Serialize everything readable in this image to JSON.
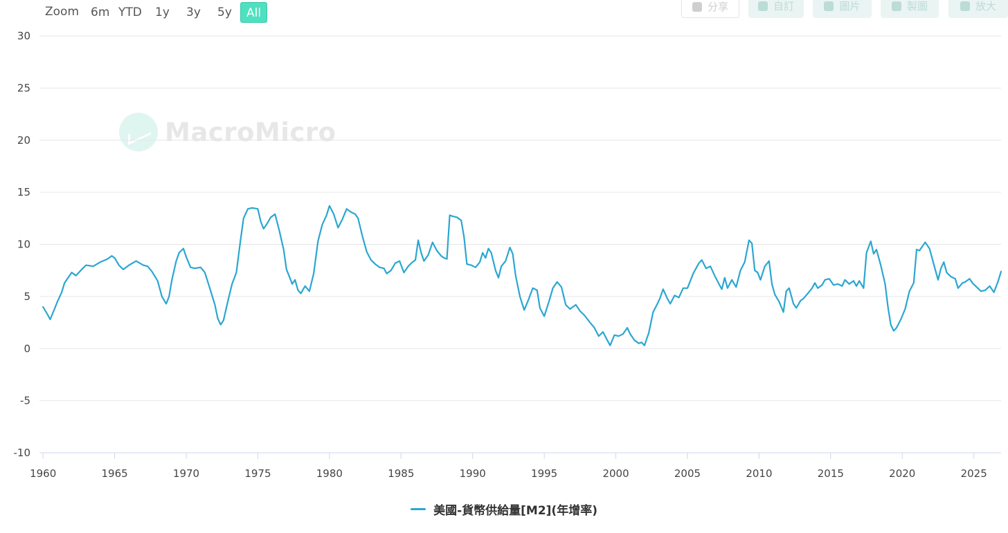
{
  "toolbar": {
    "zoom_label": "Zoom",
    "ranges": [
      "6m",
      "YTD",
      "1y",
      "3y",
      "5y",
      "All"
    ],
    "active_range": "All",
    "tools": [
      "分享",
      "自訂",
      "圖片",
      "製圖",
      "放大"
    ]
  },
  "watermark": {
    "text": "MacroMicro"
  },
  "chart_data": {
    "type": "line",
    "title": "",
    "xlabel": "",
    "ylabel": "",
    "xlim": [
      1959.75,
      2026.9
    ],
    "ylim": [
      -10,
      30
    ],
    "yticks": [
      -10,
      -5,
      0,
      5,
      10,
      15,
      20,
      25,
      30
    ],
    "xticks": [
      1960,
      1965,
      1970,
      1975,
      1980,
      1985,
      1990,
      1995,
      2000,
      2005,
      2010,
      2015,
      2020,
      2025
    ],
    "grid": true,
    "legend_position": "bottom-center",
    "series": [
      {
        "name": "美國-貨幣供給量[M2](年增率)",
        "color": "#2aa6d1",
        "points": [
          [
            1960.0,
            4.0
          ],
          [
            1960.3,
            3.3
          ],
          [
            1960.5,
            2.8
          ],
          [
            1960.8,
            3.8
          ],
          [
            1961.0,
            4.5
          ],
          [
            1961.3,
            5.4
          ],
          [
            1961.5,
            6.3
          ],
          [
            1961.8,
            6.9
          ],
          [
            1962.0,
            7.3
          ],
          [
            1962.3,
            7.0
          ],
          [
            1962.7,
            7.6
          ],
          [
            1963.0,
            8.0
          ],
          [
            1963.5,
            7.9
          ],
          [
            1964.0,
            8.3
          ],
          [
            1964.5,
            8.6
          ],
          [
            1964.8,
            8.9
          ],
          [
            1965.0,
            8.7
          ],
          [
            1965.3,
            8.0
          ],
          [
            1965.6,
            7.6
          ],
          [
            1966.0,
            8.0
          ],
          [
            1966.5,
            8.4
          ],
          [
            1967.0,
            8.0
          ],
          [
            1967.3,
            7.9
          ],
          [
            1967.6,
            7.4
          ],
          [
            1968.0,
            6.5
          ],
          [
            1968.3,
            5.0
          ],
          [
            1968.6,
            4.3
          ],
          [
            1968.8,
            5.0
          ],
          [
            1969.0,
            6.6
          ],
          [
            1969.3,
            8.4
          ],
          [
            1969.5,
            9.2
          ],
          [
            1969.8,
            9.6
          ],
          [
            1970.0,
            8.8
          ],
          [
            1970.3,
            7.8
          ],
          [
            1970.6,
            7.7
          ],
          [
            1971.0,
            7.8
          ],
          [
            1971.3,
            7.3
          ],
          [
            1971.6,
            6.0
          ],
          [
            1972.0,
            4.2
          ],
          [
            1972.2,
            2.9
          ],
          [
            1972.4,
            2.3
          ],
          [
            1972.6,
            2.7
          ],
          [
            1972.9,
            4.5
          ],
          [
            1973.2,
            6.2
          ],
          [
            1973.5,
            7.3
          ],
          [
            1973.8,
            10.5
          ],
          [
            1974.0,
            12.5
          ],
          [
            1974.3,
            13.4
          ],
          [
            1974.6,
            13.5
          ],
          [
            1975.0,
            13.4
          ],
          [
            1975.2,
            12.2
          ],
          [
            1975.4,
            11.5
          ],
          [
            1975.6,
            11.9
          ],
          [
            1975.9,
            12.6
          ],
          [
            1976.2,
            12.9
          ],
          [
            1976.5,
            11.3
          ],
          [
            1976.8,
            9.5
          ],
          [
            1977.0,
            7.6
          ],
          [
            1977.2,
            6.9
          ],
          [
            1977.4,
            6.2
          ],
          [
            1977.6,
            6.6
          ],
          [
            1977.8,
            5.6
          ],
          [
            1978.0,
            5.3
          ],
          [
            1978.3,
            6.0
          ],
          [
            1978.6,
            5.5
          ],
          [
            1978.9,
            7.2
          ],
          [
            1979.2,
            10.3
          ],
          [
            1979.5,
            11.9
          ],
          [
            1979.8,
            12.8
          ],
          [
            1980.0,
            13.7
          ],
          [
            1980.3,
            12.9
          ],
          [
            1980.6,
            11.6
          ],
          [
            1980.9,
            12.4
          ],
          [
            1981.2,
            13.4
          ],
          [
            1981.5,
            13.1
          ],
          [
            1981.8,
            12.9
          ],
          [
            1982.0,
            12.5
          ],
          [
            1982.3,
            10.8
          ],
          [
            1982.6,
            9.3
          ],
          [
            1982.9,
            8.5
          ],
          [
            1983.2,
            8.1
          ],
          [
            1983.5,
            7.8
          ],
          [
            1983.8,
            7.7
          ],
          [
            1984.0,
            7.2
          ],
          [
            1984.3,
            7.5
          ],
          [
            1984.6,
            8.2
          ],
          [
            1984.9,
            8.4
          ],
          [
            1985.2,
            7.3
          ],
          [
            1985.5,
            7.9
          ],
          [
            1985.8,
            8.3
          ],
          [
            1986.0,
            8.5
          ],
          [
            1986.2,
            10.4
          ],
          [
            1986.4,
            9.2
          ],
          [
            1986.6,
            8.4
          ],
          [
            1986.9,
            9.0
          ],
          [
            1987.2,
            10.2
          ],
          [
            1987.5,
            9.4
          ],
          [
            1987.8,
            8.9
          ],
          [
            1988.0,
            8.7
          ],
          [
            1988.2,
            8.6
          ],
          [
            1988.4,
            12.8
          ],
          [
            1988.6,
            12.7
          ],
          [
            1988.9,
            12.6
          ],
          [
            1989.2,
            12.3
          ],
          [
            1989.4,
            10.7
          ],
          [
            1989.6,
            8.1
          ],
          [
            1989.9,
            8.0
          ],
          [
            1990.2,
            7.8
          ],
          [
            1990.5,
            8.3
          ],
          [
            1990.7,
            9.2
          ],
          [
            1990.9,
            8.7
          ],
          [
            1991.1,
            9.6
          ],
          [
            1991.3,
            9.2
          ],
          [
            1991.6,
            7.5
          ],
          [
            1991.8,
            6.8
          ],
          [
            1992.0,
            7.9
          ],
          [
            1992.3,
            8.4
          ],
          [
            1992.6,
            9.7
          ],
          [
            1992.8,
            9.1
          ],
          [
            1993.0,
            7.0
          ],
          [
            1993.3,
            5.0
          ],
          [
            1993.6,
            3.7
          ],
          [
            1993.9,
            4.7
          ],
          [
            1994.2,
            5.8
          ],
          [
            1994.5,
            5.6
          ],
          [
            1994.7,
            3.9
          ],
          [
            1995.0,
            3.1
          ],
          [
            1995.3,
            4.4
          ],
          [
            1995.6,
            5.8
          ],
          [
            1995.9,
            6.4
          ],
          [
            1996.2,
            5.9
          ],
          [
            1996.5,
            4.2
          ],
          [
            1996.8,
            3.8
          ],
          [
            1997.2,
            4.2
          ],
          [
            1997.5,
            3.6
          ],
          [
            1997.8,
            3.2
          ],
          [
            1998.2,
            2.5
          ],
          [
            1998.5,
            2.0
          ],
          [
            1998.8,
            1.2
          ],
          [
            1999.1,
            1.6
          ],
          [
            1999.4,
            0.8
          ],
          [
            1999.6,
            0.3
          ],
          [
            1999.9,
            1.3
          ],
          [
            2000.2,
            1.2
          ],
          [
            2000.5,
            1.4
          ],
          [
            2000.8,
            2.0
          ],
          [
            2001.0,
            1.4
          ],
          [
            2001.3,
            0.8
          ],
          [
            2001.6,
            0.5
          ],
          [
            2001.8,
            0.6
          ],
          [
            2002.0,
            0.3
          ],
          [
            2002.3,
            1.5
          ],
          [
            2002.6,
            3.5
          ],
          [
            2002.9,
            4.3
          ],
          [
            2003.1,
            4.9
          ],
          [
            2003.3,
            5.7
          ],
          [
            2003.6,
            4.8
          ],
          [
            2003.8,
            4.3
          ],
          [
            2004.1,
            5.1
          ],
          [
            2004.4,
            4.9
          ],
          [
            2004.7,
            5.8
          ],
          [
            2005.0,
            5.8
          ],
          [
            2005.4,
            7.2
          ],
          [
            2005.8,
            8.2
          ],
          [
            2006.0,
            8.5
          ],
          [
            2006.3,
            7.7
          ],
          [
            2006.6,
            7.9
          ],
          [
            2006.9,
            7.0
          ],
          [
            2007.2,
            6.2
          ],
          [
            2007.4,
            5.7
          ],
          [
            2007.6,
            6.8
          ],
          [
            2007.8,
            5.8
          ],
          [
            2008.1,
            6.6
          ],
          [
            2008.4,
            5.9
          ],
          [
            2008.7,
            7.5
          ],
          [
            2009.0,
            8.3
          ],
          [
            2009.3,
            10.4
          ],
          [
            2009.5,
            10.1
          ],
          [
            2009.7,
            7.5
          ],
          [
            2009.9,
            7.3
          ],
          [
            2010.1,
            6.6
          ],
          [
            2010.4,
            7.9
          ],
          [
            2010.7,
            8.4
          ],
          [
            2010.9,
            6.2
          ],
          [
            2011.1,
            5.2
          ],
          [
            2011.4,
            4.5
          ],
          [
            2011.7,
            3.5
          ],
          [
            2011.9,
            5.5
          ],
          [
            2012.1,
            5.8
          ],
          [
            2012.4,
            4.3
          ],
          [
            2012.6,
            3.9
          ],
          [
            2012.9,
            4.6
          ],
          [
            2013.1,
            4.8
          ],
          [
            2013.4,
            5.3
          ],
          [
            2013.7,
            5.8
          ],
          [
            2013.9,
            6.3
          ],
          [
            2014.1,
            5.8
          ],
          [
            2014.4,
            6.1
          ],
          [
            2014.6,
            6.6
          ],
          [
            2014.9,
            6.7
          ],
          [
            2015.2,
            6.1
          ],
          [
            2015.5,
            6.2
          ],
          [
            2015.8,
            6.0
          ],
          [
            2016.0,
            6.6
          ],
          [
            2016.3,
            6.2
          ],
          [
            2016.6,
            6.5
          ],
          [
            2016.8,
            6.0
          ],
          [
            2017.0,
            6.5
          ],
          [
            2017.3,
            5.8
          ],
          [
            2017.5,
            9.2
          ],
          [
            2017.8,
            10.3
          ],
          [
            2018.0,
            9.1
          ],
          [
            2018.2,
            9.5
          ],
          [
            2018.5,
            8.0
          ],
          [
            2018.8,
            6.2
          ],
          [
            2019.0,
            4.0
          ],
          [
            2019.2,
            2.3
          ],
          [
            2019.4,
            1.7
          ],
          [
            2019.6,
            2.0
          ],
          [
            2019.9,
            2.8
          ],
          [
            2020.2,
            3.8
          ],
          [
            2020.5,
            5.5
          ],
          [
            2020.8,
            6.3
          ],
          [
            2021.0,
            9.5
          ],
          [
            2021.2,
            9.4
          ],
          [
            2021.4,
            9.8
          ],
          [
            2021.6,
            10.2
          ],
          [
            2021.9,
            9.6
          ],
          [
            2022.1,
            8.6
          ],
          [
            2022.3,
            7.6
          ],
          [
            2022.5,
            6.6
          ],
          [
            2022.7,
            7.7
          ],
          [
            2022.9,
            8.3
          ],
          [
            2023.1,
            7.3
          ],
          [
            2023.4,
            6.9
          ],
          [
            2023.7,
            6.7
          ],
          [
            2023.9,
            5.8
          ],
          [
            2024.2,
            6.3
          ],
          [
            2024.4,
            6.4
          ],
          [
            2024.7,
            6.7
          ],
          [
            2024.9,
            6.3
          ],
          [
            2025.2,
            5.9
          ],
          [
            2025.5,
            5.5
          ],
          [
            2025.8,
            5.6
          ],
          [
            2026.1,
            6.0
          ],
          [
            2026.4,
            5.4
          ],
          [
            2026.7,
            6.5
          ],
          [
            2026.9,
            7.4
          ]
        ]
      }
    ]
  },
  "legend": {
    "label": "美國-貨幣供給量[M2](年增率)"
  }
}
